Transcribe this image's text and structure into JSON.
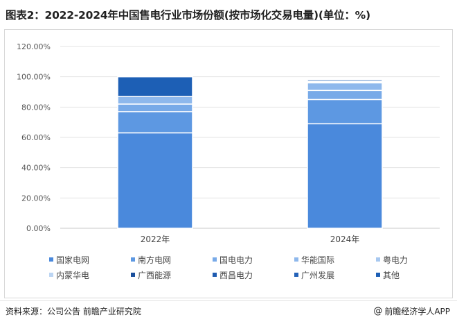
{
  "title": "图表2：2022-2024年中国售电行业市场份额(按市场化交易电量)(单位：%)",
  "footer": {
    "source": "资料来源：公司公告 前瞻产业研究院",
    "credit_icon": "@",
    "credit": "前瞻经济学人APP"
  },
  "chart_data": {
    "type": "stacked-bar",
    "title": "",
    "xlabel": "",
    "ylabel": "",
    "categories": [
      "2022年",
      "2024年"
    ],
    "ylim": [
      0,
      120
    ],
    "yticks": [
      "0.00%",
      "20.00%",
      "40.00%",
      "60.00%",
      "80.00%",
      "100.00%",
      "120.00%"
    ],
    "grid": true,
    "legend_position": "bottom",
    "series": [
      {
        "name": "国家电网",
        "color": "#4a89dc",
        "values": [
          63,
          69
        ]
      },
      {
        "name": "南方电网",
        "color": "#5d98e2",
        "values": [
          14,
          16
        ]
      },
      {
        "name": "国电电力",
        "color": "#78aae8",
        "values": [
          5,
          6
        ]
      },
      {
        "name": "华能国际",
        "color": "#8eb8ec",
        "values": [
          5,
          5
        ]
      },
      {
        "name": "粤电力",
        "color": "#a7c8f0",
        "values": [
          0,
          0.5
        ]
      },
      {
        "name": "内蒙华电",
        "color": "#bcd5f3",
        "values": [
          0,
          0.5
        ]
      },
      {
        "name": "广西能源",
        "color": "#1a4f9c",
        "values": [
          0,
          0
        ]
      },
      {
        "name": "西昌电力",
        "color": "#1e5bb0",
        "values": [
          0,
          0
        ]
      },
      {
        "name": "广州发展",
        "color": "#2462b8",
        "values": [
          0,
          0
        ]
      },
      {
        "name": "其他",
        "color": "#1d5fb5",
        "values": [
          13,
          1
        ]
      }
    ]
  }
}
